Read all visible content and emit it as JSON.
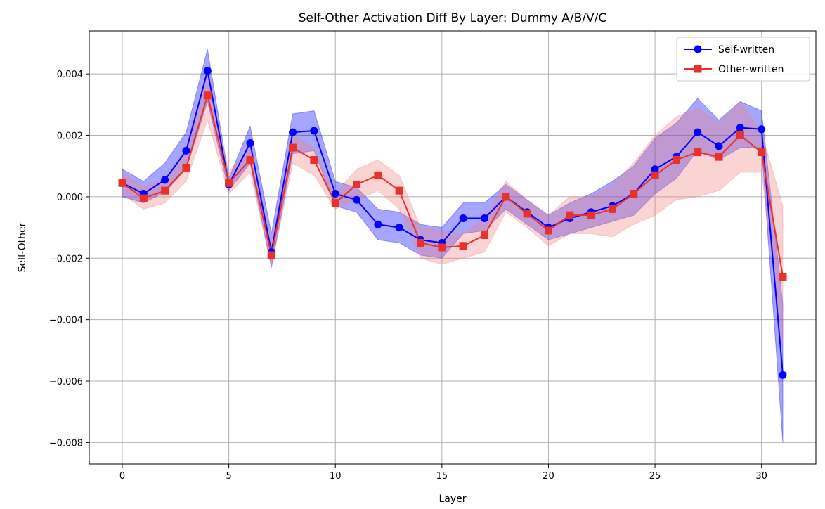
{
  "chart_data": {
    "type": "line",
    "title": "Self-Other Activation Diff By Layer: Dummy A/B/V/C",
    "xlabel": "Layer",
    "ylabel": "Self-Other",
    "xlim": [
      -1.55,
      32.55
    ],
    "ylim": [
      -0.0087,
      0.0054
    ],
    "xticks": [
      0,
      5,
      10,
      15,
      20,
      25,
      30
    ],
    "yticks": [
      -0.008,
      -0.006,
      -0.004,
      -0.002,
      0.0,
      0.002,
      0.004
    ],
    "ytick_labels": [
      "−0.008",
      "−0.006",
      "−0.004",
      "−0.002",
      "0.000",
      "0.002",
      "0.004"
    ],
    "grid": true,
    "legend_position": "top-right",
    "x": [
      0,
      1,
      2,
      3,
      4,
      5,
      6,
      7,
      8,
      9,
      10,
      11,
      12,
      13,
      14,
      15,
      16,
      17,
      18,
      19,
      20,
      21,
      22,
      23,
      24,
      25,
      26,
      27,
      28,
      29,
      30,
      31
    ],
    "series": [
      {
        "name": "Self-written",
        "color": "#0000ff",
        "fill_color": "#0000ff",
        "marker": "circle",
        "values": [
          0.00045,
          0.0001,
          0.00055,
          0.0015,
          0.0041,
          0.0004,
          0.00175,
          -0.0018,
          0.0021,
          0.00215,
          0.0001,
          -0.0001,
          -0.0009,
          -0.001,
          -0.0014,
          -0.0015,
          -0.0007,
          -0.0007,
          0.0,
          -0.0005,
          -0.001,
          -0.0007,
          -0.0005,
          -0.0003,
          0.0001,
          0.0009,
          0.0013,
          0.0021,
          0.00165,
          0.00225,
          0.0022,
          -0.0058
        ],
        "lower": [
          0.0,
          -0.0002,
          0.00015,
          0.0009,
          0.0031,
          0.0002,
          0.0011,
          -0.0023,
          0.0014,
          0.0015,
          -0.0003,
          -0.0005,
          -0.0014,
          -0.0015,
          -0.0019,
          -0.002,
          -0.0012,
          -0.0011,
          -0.0004,
          -0.0009,
          -0.0014,
          -0.0012,
          -0.001,
          -0.0008,
          -0.0006,
          0.0001,
          0.0006,
          0.0015,
          0.0012,
          0.0016,
          0.0016,
          -0.008
        ],
        "upper": [
          0.0009,
          0.0005,
          0.0011,
          0.0021,
          0.0048,
          0.0006,
          0.0023,
          -0.0012,
          0.0027,
          0.0028,
          0.0005,
          0.0003,
          -0.0004,
          -0.0005,
          -0.0009,
          -0.001,
          -0.0002,
          -0.0002,
          0.0004,
          -0.0001,
          -0.0006,
          -0.0002,
          0.0001,
          0.0005,
          0.001,
          0.0019,
          0.0024,
          0.0032,
          0.0025,
          0.0031,
          0.0028,
          -0.0035
        ]
      },
      {
        "name": "Other-written",
        "color": "#e8312a",
        "fill_color": "#f08080",
        "marker": "square",
        "values": [
          0.00045,
          -5e-05,
          0.0002,
          0.00095,
          0.0033,
          0.00045,
          0.0012,
          -0.0019,
          0.0016,
          0.0012,
          -0.0002,
          0.0004,
          0.0007,
          0.0002,
          -0.0015,
          -0.00165,
          -0.0016,
          -0.00125,
          0.0,
          -0.00055,
          -0.0011,
          -0.0006,
          -0.0006,
          -0.0004,
          0.0001,
          0.0007,
          0.0012,
          0.00145,
          0.0013,
          0.002,
          0.00145,
          -0.0026
        ],
        "lower": [
          0.0001,
          -0.0004,
          -0.0002,
          0.0005,
          0.0025,
          0.0001,
          0.0008,
          -0.0023,
          0.0011,
          0.0007,
          -0.0004,
          -0.0001,
          0.0002,
          -0.0004,
          -0.002,
          -0.0022,
          -0.002,
          -0.0018,
          -0.0005,
          -0.001,
          -0.0016,
          -0.0012,
          -0.0012,
          -0.0013,
          -0.0009,
          -0.0006,
          -0.0001,
          0.0,
          0.0002,
          0.0008,
          0.0008,
          -0.0048
        ],
        "upper": [
          0.0008,
          0.0003,
          0.0006,
          0.0014,
          0.0041,
          0.0008,
          0.0016,
          -0.0015,
          0.002,
          0.0016,
          0.0001,
          0.0009,
          0.0012,
          0.0007,
          -0.001,
          -0.0011,
          -0.0012,
          -0.0007,
          0.0005,
          -0.0001,
          -0.0006,
          0.0,
          0.0,
          0.0004,
          0.0011,
          0.002,
          0.0026,
          0.0029,
          0.0024,
          0.0031,
          0.0021,
          -0.0003
        ]
      }
    ]
  }
}
